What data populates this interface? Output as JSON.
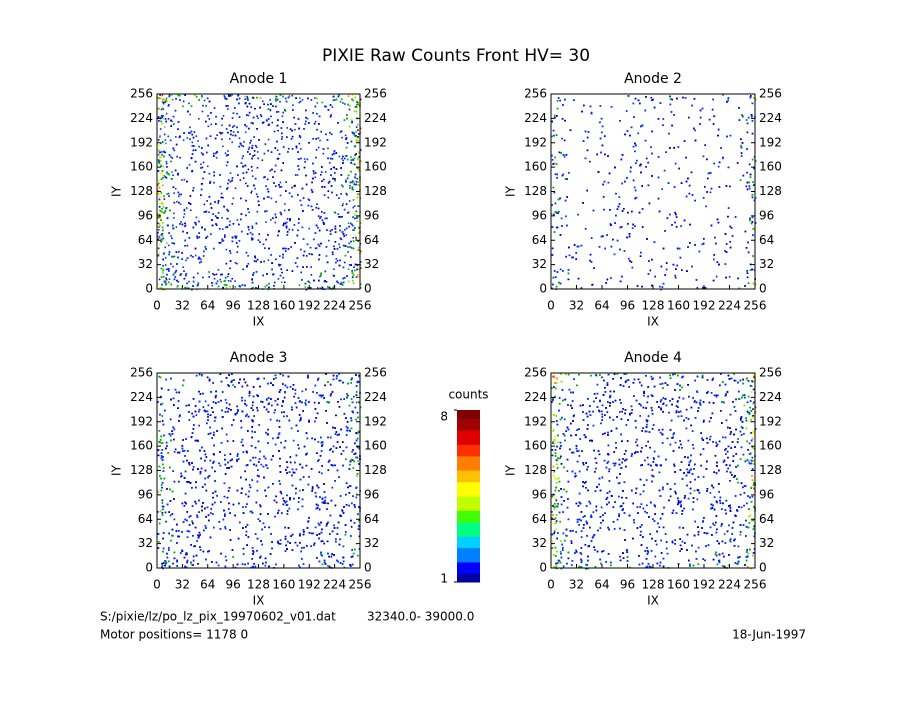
{
  "title": "PIXIE Raw Counts Front HV= 30",
  "chart_data": [
    {
      "type": "heatmap",
      "title": "Anode 1",
      "xlabel": "IX",
      "ylabel": "IY",
      "xlim": [
        0,
        256
      ],
      "ylim": [
        0,
        256
      ],
      "xticks": [
        0,
        32,
        64,
        96,
        128,
        160,
        192,
        224,
        256
      ],
      "yticks": [
        0,
        32,
        64,
        96,
        128,
        160,
        192,
        224,
        256
      ]
    },
    {
      "type": "heatmap",
      "title": "Anode 2",
      "xlabel": "IX",
      "ylabel": "IY",
      "xlim": [
        0,
        256
      ],
      "ylim": [
        0,
        256
      ],
      "xticks": [
        0,
        32,
        64,
        96,
        128,
        160,
        192,
        224,
        256
      ],
      "yticks": [
        0,
        32,
        64,
        96,
        128,
        160,
        192,
        224,
        256
      ]
    },
    {
      "type": "heatmap",
      "title": "Anode 3",
      "xlabel": "IX",
      "ylabel": "IY",
      "xlim": [
        0,
        256
      ],
      "ylim": [
        0,
        256
      ],
      "xticks": [
        0,
        32,
        64,
        96,
        128,
        160,
        192,
        224,
        256
      ],
      "yticks": [
        0,
        32,
        64,
        96,
        128,
        160,
        192,
        224,
        256
      ]
    },
    {
      "type": "heatmap",
      "title": "Anode 4",
      "xlabel": "IX",
      "ylabel": "IY",
      "xlim": [
        0,
        256
      ],
      "ylim": [
        0,
        256
      ],
      "xticks": [
        0,
        32,
        64,
        96,
        128,
        160,
        192,
        224,
        256
      ],
      "yticks": [
        0,
        32,
        64,
        96,
        128,
        160,
        192,
        224,
        256
      ]
    }
  ],
  "colorbar": {
    "label": "counts",
    "lim": [
      1,
      8
    ],
    "ticks": [
      1,
      8
    ]
  },
  "footer": {
    "file": "S:/pixie/lz/po_lz_pix_19970602_v01.dat",
    "range": "32340.0- 39000.0",
    "motor": "Motor positions= 1178 0",
    "date": "18-Jun-1997"
  }
}
